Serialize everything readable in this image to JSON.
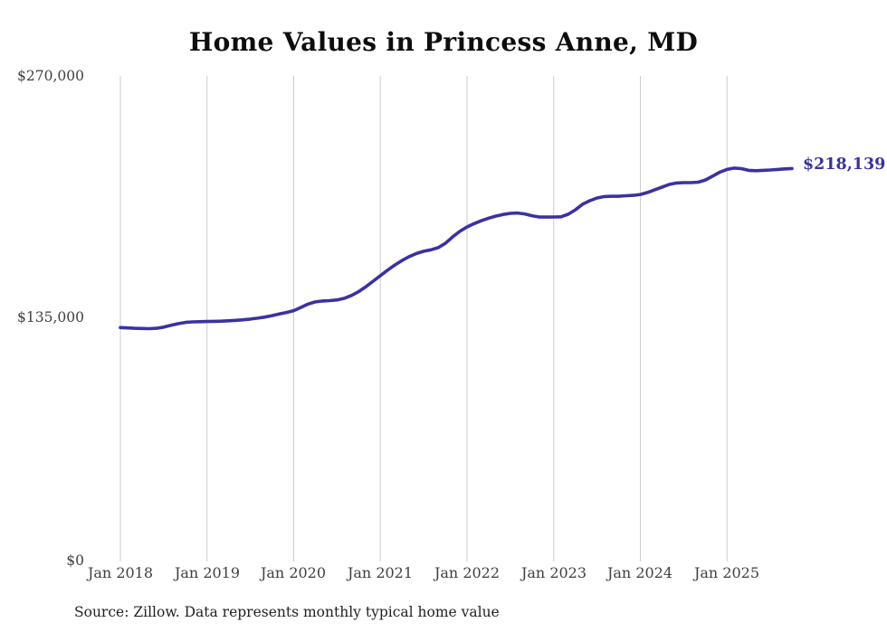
{
  "chart_data": {
    "type": "line",
    "title": "Home Values in Princess Anne, MD",
    "source_note": "Source: Zillow. Data represents monthly typical home value",
    "series_name": "Monthly typical home value",
    "end_label": "$218,139",
    "end_value": 218139,
    "line_color": "#3a32a0",
    "grid_color": "#cccccc",
    "legend": "none",
    "grid": "vertical-only",
    "ylim": [
      0,
      270000
    ],
    "y_tick_labels": [
      "$270,000",
      "$135,000",
      "$0"
    ],
    "y_tick_values": [
      270000,
      135000,
      0
    ],
    "x_tick_labels": [
      "Jan 2018",
      "Jan 2019",
      "Jan 2020",
      "Jan 2021",
      "Jan 2022",
      "Jan 2023",
      "Jan 2024",
      "Jan 2025"
    ],
    "x": [
      "Jan 2018",
      "Feb 2018",
      "Mar 2018",
      "Apr 2018",
      "May 2018",
      "Jun 2018",
      "Jul 2018",
      "Aug 2018",
      "Sep 2018",
      "Oct 2018",
      "Nov 2018",
      "Dec 2018",
      "Jan 2019",
      "Feb 2019",
      "Mar 2019",
      "Apr 2019",
      "May 2019",
      "Jun 2019",
      "Jul 2019",
      "Aug 2019",
      "Sep 2019",
      "Oct 2019",
      "Nov 2019",
      "Dec 2019",
      "Jan 2020",
      "Feb 2020",
      "Mar 2020",
      "Apr 2020",
      "May 2020",
      "Jun 2020",
      "Jul 2020",
      "Aug 2020",
      "Sep 2020",
      "Oct 2020",
      "Nov 2020",
      "Dec 2020",
      "Jan 2021",
      "Feb 2021",
      "Mar 2021",
      "Apr 2021",
      "May 2021",
      "Jun 2021",
      "Jul 2021",
      "Aug 2021",
      "Sep 2021",
      "Oct 2021",
      "Nov 2021",
      "Dec 2021",
      "Jan 2022",
      "Feb 2022",
      "Mar 2022",
      "Apr 2022",
      "May 2022",
      "Jun 2022",
      "Jul 2022",
      "Aug 2022",
      "Sep 2022",
      "Oct 2022",
      "Nov 2022",
      "Dec 2022",
      "Jan 2023",
      "Feb 2023",
      "Mar 2023",
      "Apr 2023",
      "May 2023",
      "Jun 2023",
      "Jul 2023",
      "Aug 2023",
      "Sep 2023",
      "Oct 2023",
      "Nov 2023",
      "Dec 2023",
      "Jan 2024",
      "Feb 2024",
      "Mar 2024",
      "Apr 2024",
      "May 2024",
      "Jun 2024",
      "Jul 2024",
      "Aug 2024",
      "Sep 2024",
      "Oct 2024",
      "Nov 2024",
      "Dec 2024",
      "Jan 2025",
      "Feb 2025",
      "Mar 2025",
      "Apr 2025",
      "May 2025",
      "Jun 2025",
      "Jul 2025",
      "Aug 2025",
      "Sep 2025",
      "Oct 2025"
    ],
    "values": [
      129000,
      128800,
      128600,
      128500,
      128400,
      128600,
      129300,
      130300,
      131200,
      131900,
      132200,
      132300,
      132400,
      132500,
      132600,
      132800,
      133100,
      133400,
      133800,
      134300,
      134900,
      135700,
      136600,
      137500,
      138500,
      140300,
      142200,
      143400,
      143900,
      144100,
      144500,
      145400,
      147000,
      149200,
      151900,
      155000,
      158100,
      161200,
      164100,
      166600,
      168800,
      170500,
      171800,
      172600,
      173800,
      176200,
      179800,
      182900,
      185400,
      187300,
      188900,
      190300,
      191500,
      192400,
      193000,
      193200,
      192700,
      191700,
      191000,
      190900,
      191000,
      191100,
      192500,
      195000,
      198100,
      200100,
      201600,
      202400,
      202600,
      202600,
      202900,
      203100,
      203600,
      204700,
      206200,
      207700,
      209200,
      210000,
      210200,
      210200,
      210500,
      211700,
      213800,
      216100,
      217600,
      218400,
      218100,
      217100,
      216900,
      217100,
      217300,
      217600,
      217900,
      218139
    ]
  }
}
